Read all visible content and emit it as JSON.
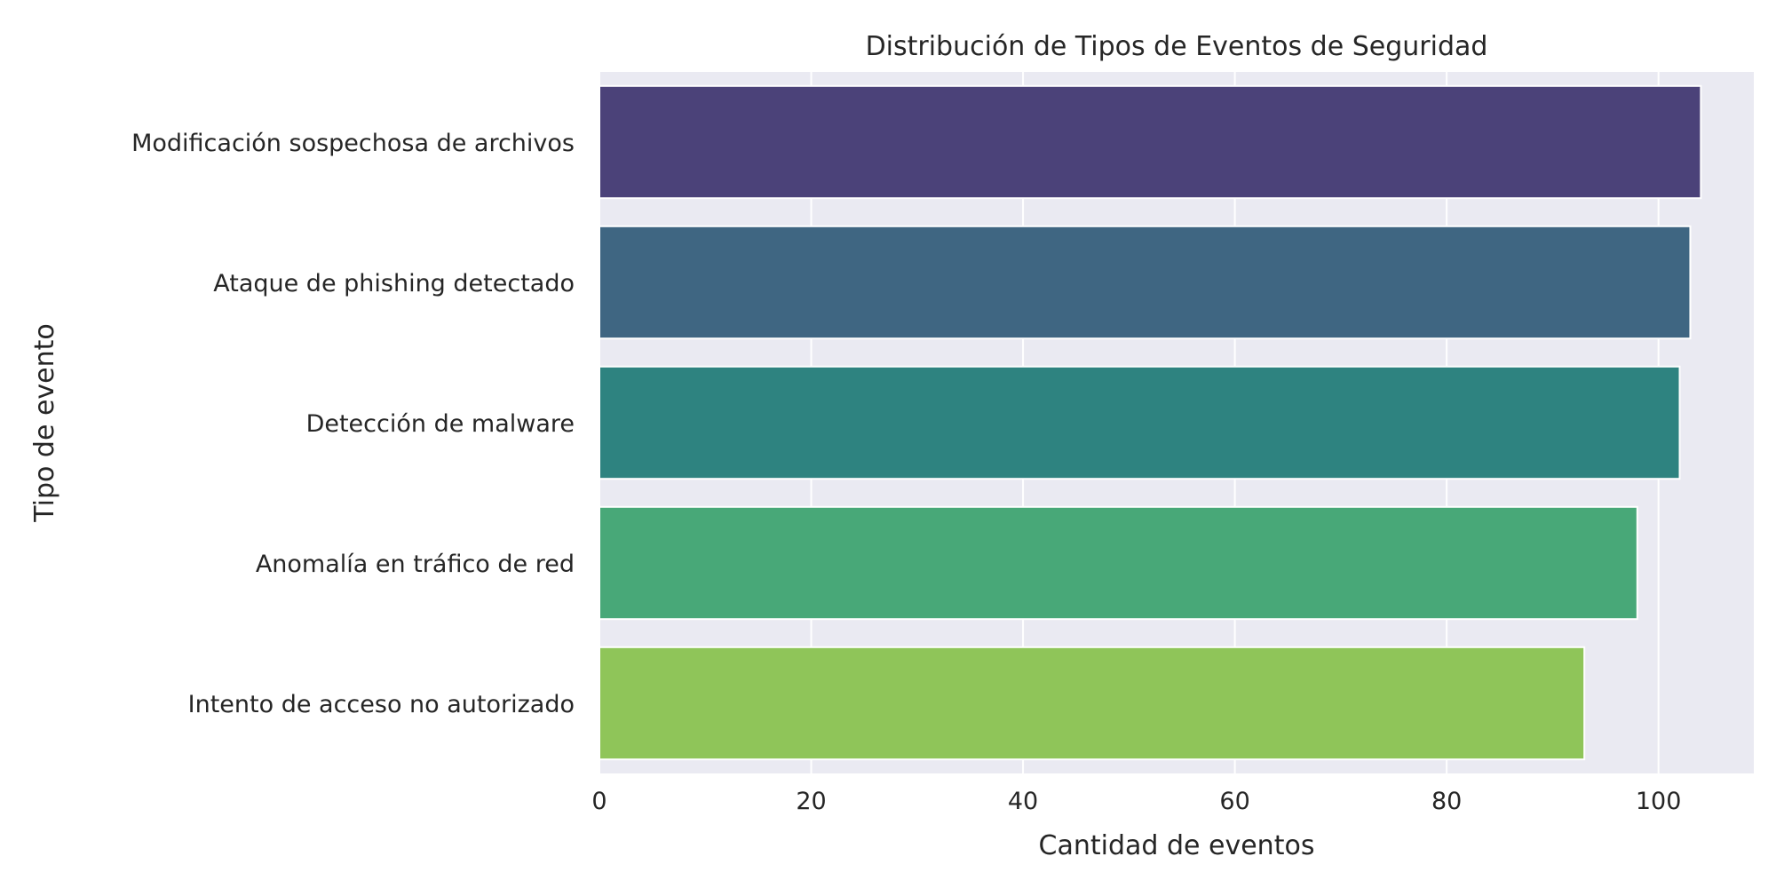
{
  "chart_data": {
    "type": "bar",
    "orientation": "horizontal",
    "title": "Distribución de Tipos de Eventos de Seguridad",
    "xlabel": "Cantidad de eventos",
    "ylabel": "Tipo de evento",
    "categories": [
      "Modificación sospechosa de archivos",
      "Ataque de phishing detectado",
      "Detección de malware",
      "Anomalía en tráfico de red",
      "Intento de acceso no autorizado"
    ],
    "values": [
      104,
      103,
      102,
      98,
      93
    ],
    "xlim": [
      0,
      109
    ],
    "xticks": [
      0,
      20,
      40,
      60,
      80,
      100
    ],
    "grid": true,
    "colors": [
      "#4b4279",
      "#3f6682",
      "#2e8380",
      "#48a878",
      "#8fc559"
    ],
    "background": "#eaeaf2",
    "grid_color": "#ffffff"
  }
}
